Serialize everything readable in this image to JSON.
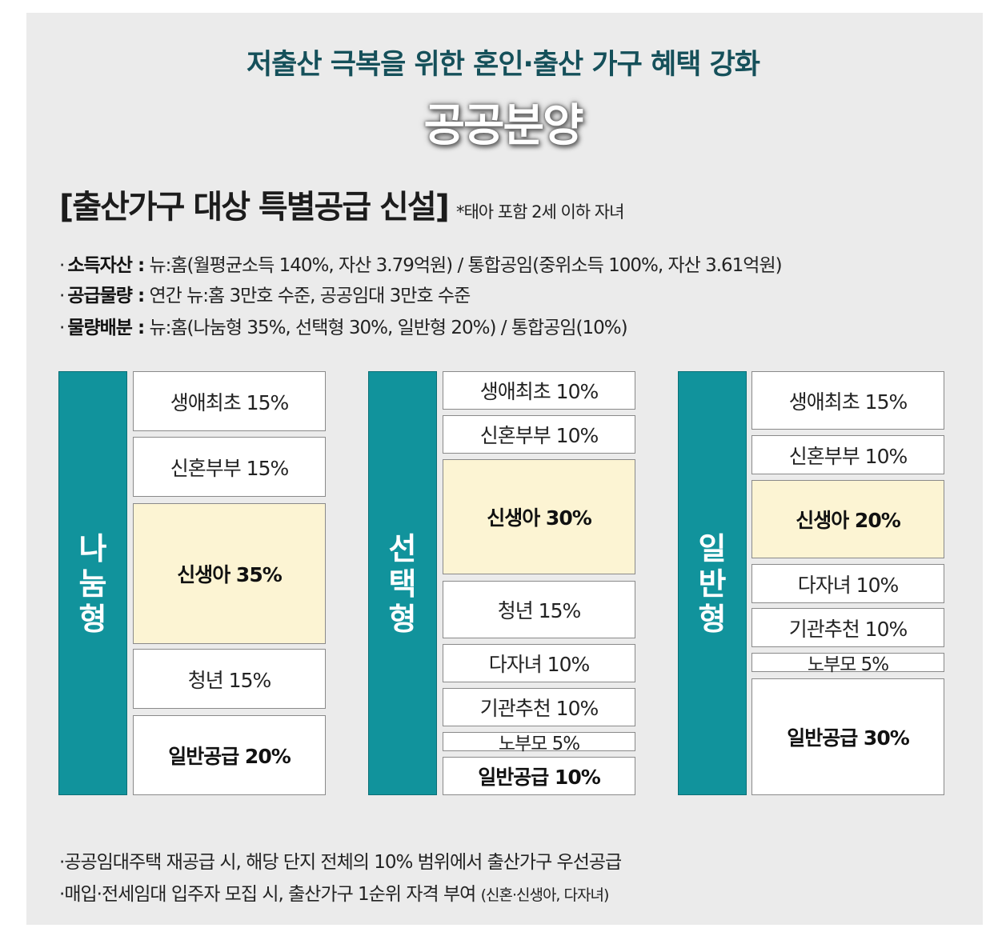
{
  "header": {
    "subtitle": "저출산 극복을 위한 혼인·출산 가구 혜택 강화",
    "title": "공공분양"
  },
  "section": {
    "heading": "[출산가구 대상 특별공급 신설]",
    "note": "*태아 포함 2세 이하 자녀"
  },
  "info": [
    {
      "bullet": "·",
      "key": "소득자산 :",
      "value": " 뉴:홈(월평균소득 140%, 자산 3.79억원) / 통합공임(중위소득 100%, 자산 3.61억원)"
    },
    {
      "bullet": "·",
      "key": "공급물량 :",
      "value": " 연간 뉴:홈 3만호 수준, 공공임대 3만호 수준"
    },
    {
      "bullet": "·",
      "key": "물량배분 :",
      "value": " 뉴:홈(나눔형 35%, 선택형 30%, 일반형 20%) / 통합공임(10%)"
    }
  ],
  "chart_data": {
    "type": "stacked-bar",
    "categories": [
      "나눔형",
      "선택형",
      "일반형"
    ],
    "columns": [
      {
        "label": "나눔형",
        "segments": [
          {
            "label": "생애최초 15%",
            "name": "생애최초",
            "value": 15,
            "highlight": false,
            "bold": false
          },
          {
            "label": "신혼부부 15%",
            "name": "신혼부부",
            "value": 15,
            "highlight": false,
            "bold": false
          },
          {
            "label": "신생아 35%",
            "name": "신생아",
            "value": 35,
            "highlight": true,
            "bold": true
          },
          {
            "label": "청년 15%",
            "name": "청년",
            "value": 15,
            "highlight": false,
            "bold": false
          },
          {
            "label": "일반공급 20%",
            "name": "일반공급",
            "value": 20,
            "highlight": false,
            "bold": true
          }
        ]
      },
      {
        "label": "선택형",
        "segments": [
          {
            "label": "생애최초 10%",
            "name": "생애최초",
            "value": 10,
            "highlight": false,
            "bold": false
          },
          {
            "label": "신혼부부 10%",
            "name": "신혼부부",
            "value": 10,
            "highlight": false,
            "bold": false
          },
          {
            "label": "신생아 30%",
            "name": "신생아",
            "value": 30,
            "highlight": true,
            "bold": true
          },
          {
            "label": "청년 15%",
            "name": "청년",
            "value": 15,
            "highlight": false,
            "bold": false
          },
          {
            "label": "다자녀 10%",
            "name": "다자녀",
            "value": 10,
            "highlight": false,
            "bold": false
          },
          {
            "label": "기관추천 10%",
            "name": "기관추천",
            "value": 10,
            "highlight": false,
            "bold": false
          },
          {
            "label": "노부모 5%",
            "name": "노부모",
            "value": 5,
            "highlight": false,
            "bold": false
          },
          {
            "label": "일반공급 10%",
            "name": "일반공급",
            "value": 10,
            "highlight": false,
            "bold": true
          }
        ]
      },
      {
        "label": "일반형",
        "segments": [
          {
            "label": "생애최초 15%",
            "name": "생애최초",
            "value": 15,
            "highlight": false,
            "bold": false
          },
          {
            "label": "신혼부부 10%",
            "name": "신혼부부",
            "value": 10,
            "highlight": false,
            "bold": false
          },
          {
            "label": "신생아 20%",
            "name": "신생아",
            "value": 20,
            "highlight": true,
            "bold": true
          },
          {
            "label": "다자녀 10%",
            "name": "다자녀",
            "value": 10,
            "highlight": false,
            "bold": false
          },
          {
            "label": "기관추천 10%",
            "name": "기관추천",
            "value": 10,
            "highlight": false,
            "bold": false
          },
          {
            "label": "노부모 5%",
            "name": "노부모",
            "value": 5,
            "highlight": false,
            "bold": false
          },
          {
            "label": "일반공급 30%",
            "name": "일반공급",
            "value": 30,
            "highlight": false,
            "bold": true
          }
        ]
      }
    ],
    "colors": {
      "column_bar": "#11939c",
      "highlight": "#fcf4d3",
      "normal": "#ffffff"
    }
  },
  "footnotes": [
    {
      "bullet": "·",
      "text": "공공임대주택 재공급 시, 해당 단지 전체의 10% 범위에서 출산가구 우선공급",
      "small": ""
    },
    {
      "bullet": "·",
      "text": "매입·전세임대 입주자 모집 시, 출산가구 1순위 자격 부여 ",
      "small": "(신혼·신생아, 다자녀)"
    }
  ]
}
